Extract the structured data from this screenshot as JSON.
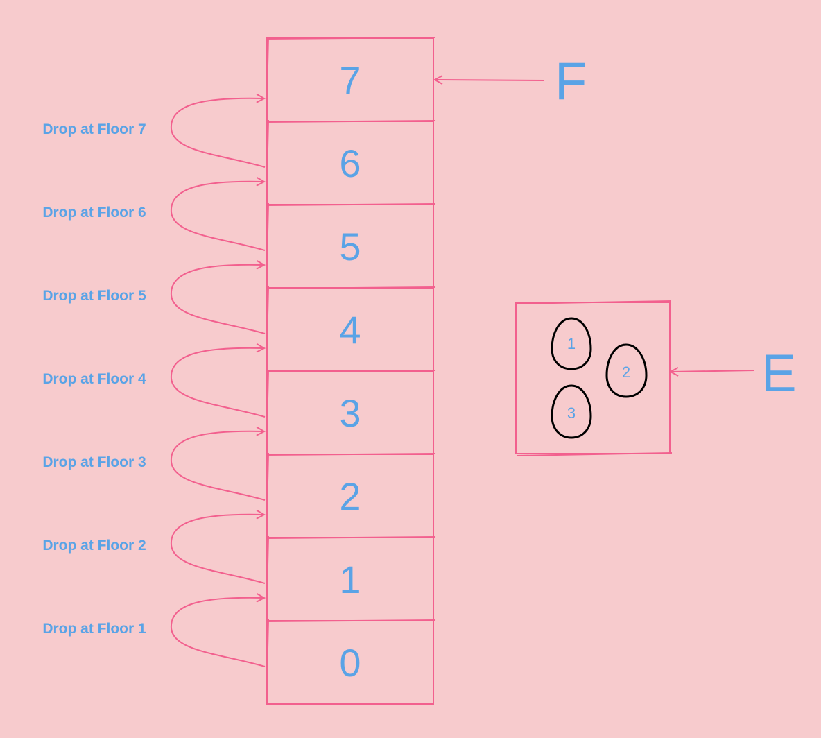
{
  "building": {
    "floors": [
      {
        "number": "7",
        "state": "normal"
      },
      {
        "number": "6",
        "state": "normal"
      },
      {
        "number": "5",
        "state": "normal"
      },
      {
        "number": "4",
        "state": "normal"
      },
      {
        "number": "3",
        "state": "normal"
      },
      {
        "number": "2",
        "state": "normal"
      },
      {
        "number": "1",
        "state": "normal"
      },
      {
        "number": "0",
        "state": "ground"
      }
    ],
    "pointer_label": "F"
  },
  "drops": [
    {
      "label": "Drop at Floor 7"
    },
    {
      "label": "Drop at Floor 6"
    },
    {
      "label": "Drop at Floor 5"
    },
    {
      "label": "Drop at Floor 4"
    },
    {
      "label": "Drop at Floor 3"
    },
    {
      "label": "Drop at Floor 2"
    },
    {
      "label": "Drop at Floor 1"
    }
  ],
  "eggs": {
    "items": [
      {
        "label": "1"
      },
      {
        "label": "2"
      },
      {
        "label": "3"
      }
    ],
    "pointer_label": "E"
  },
  "colors": {
    "background": "#f7cbcd",
    "floor_fill": "#fdd98c",
    "ground_fill": "#ddc9da",
    "outline": "#f2608e",
    "text": "#5aa3e6",
    "egg_outline": "#000000"
  }
}
